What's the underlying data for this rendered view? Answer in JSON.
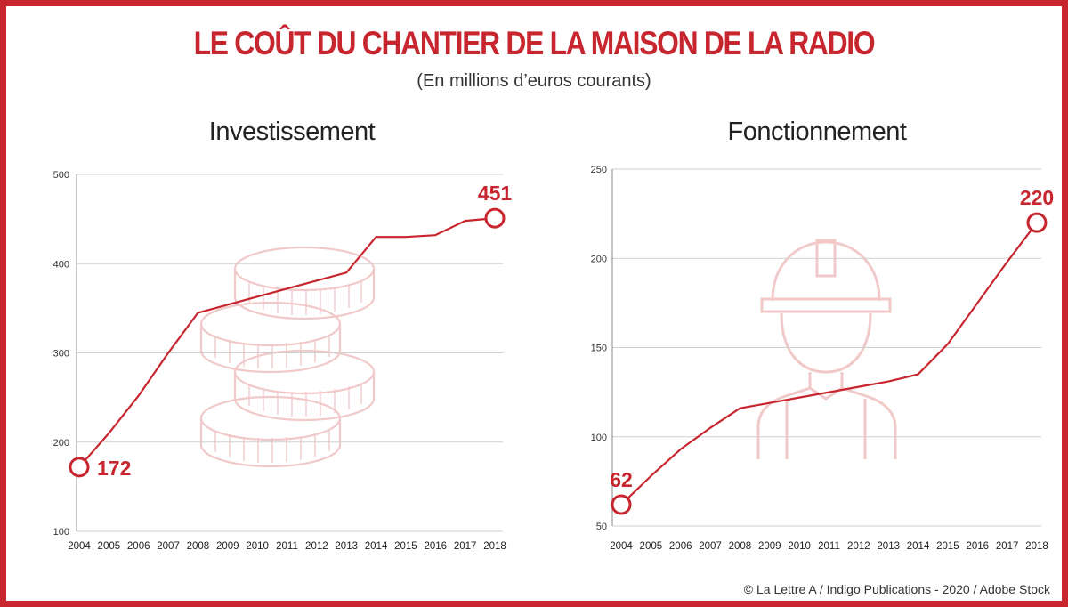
{
  "title": "LE COÛT DU CHANTIER DE LA MAISON DE LA RADIO",
  "subtitle": "(En millions d’euros courants)",
  "credit": "© La Lettre A / Indigo Publications - 2020 / Adobe Stock",
  "colors": {
    "accent": "#c8262f",
    "illustration": "#f2c9c9",
    "grid": "#cfcfcf"
  },
  "chart_data": [
    {
      "type": "line",
      "title": "Investissement",
      "x": [
        2004,
        2005,
        2006,
        2007,
        2008,
        2009,
        2010,
        2011,
        2012,
        2013,
        2014,
        2015,
        2016,
        2017,
        2018
      ],
      "ylim": [
        100,
        500
      ],
      "yticks": [
        100,
        200,
        300,
        400,
        500
      ],
      "grid": true,
      "series": [
        {
          "values": [
            172,
            210,
            252,
            300,
            345,
            354,
            363,
            372,
            381,
            390,
            430,
            430,
            432,
            448,
            451
          ]
        }
      ],
      "annotations": [
        {
          "x": 2004,
          "label": "172",
          "placement": "right"
        },
        {
          "x": 2018,
          "label": "451",
          "placement": "above"
        }
      ],
      "illustration": "coins-icon"
    },
    {
      "type": "line",
      "title": "Fonctionnement",
      "x": [
        2004,
        2005,
        2006,
        2007,
        2008,
        2009,
        2010,
        2011,
        2012,
        2013,
        2014,
        2015,
        2016,
        2017,
        2018
      ],
      "ylim": [
        50,
        250
      ],
      "yticks": [
        50,
        100,
        150,
        200,
        250
      ],
      "grid": true,
      "series": [
        {
          "values": [
            62,
            78,
            93,
            105,
            116,
            119,
            122,
            125,
            128,
            131,
            135,
            152,
            175,
            198,
            220
          ]
        }
      ],
      "annotations": [
        {
          "x": 2004,
          "label": "62",
          "placement": "above"
        },
        {
          "x": 2018,
          "label": "220",
          "placement": "above"
        }
      ],
      "illustration": "worker-helmet-icon"
    }
  ]
}
